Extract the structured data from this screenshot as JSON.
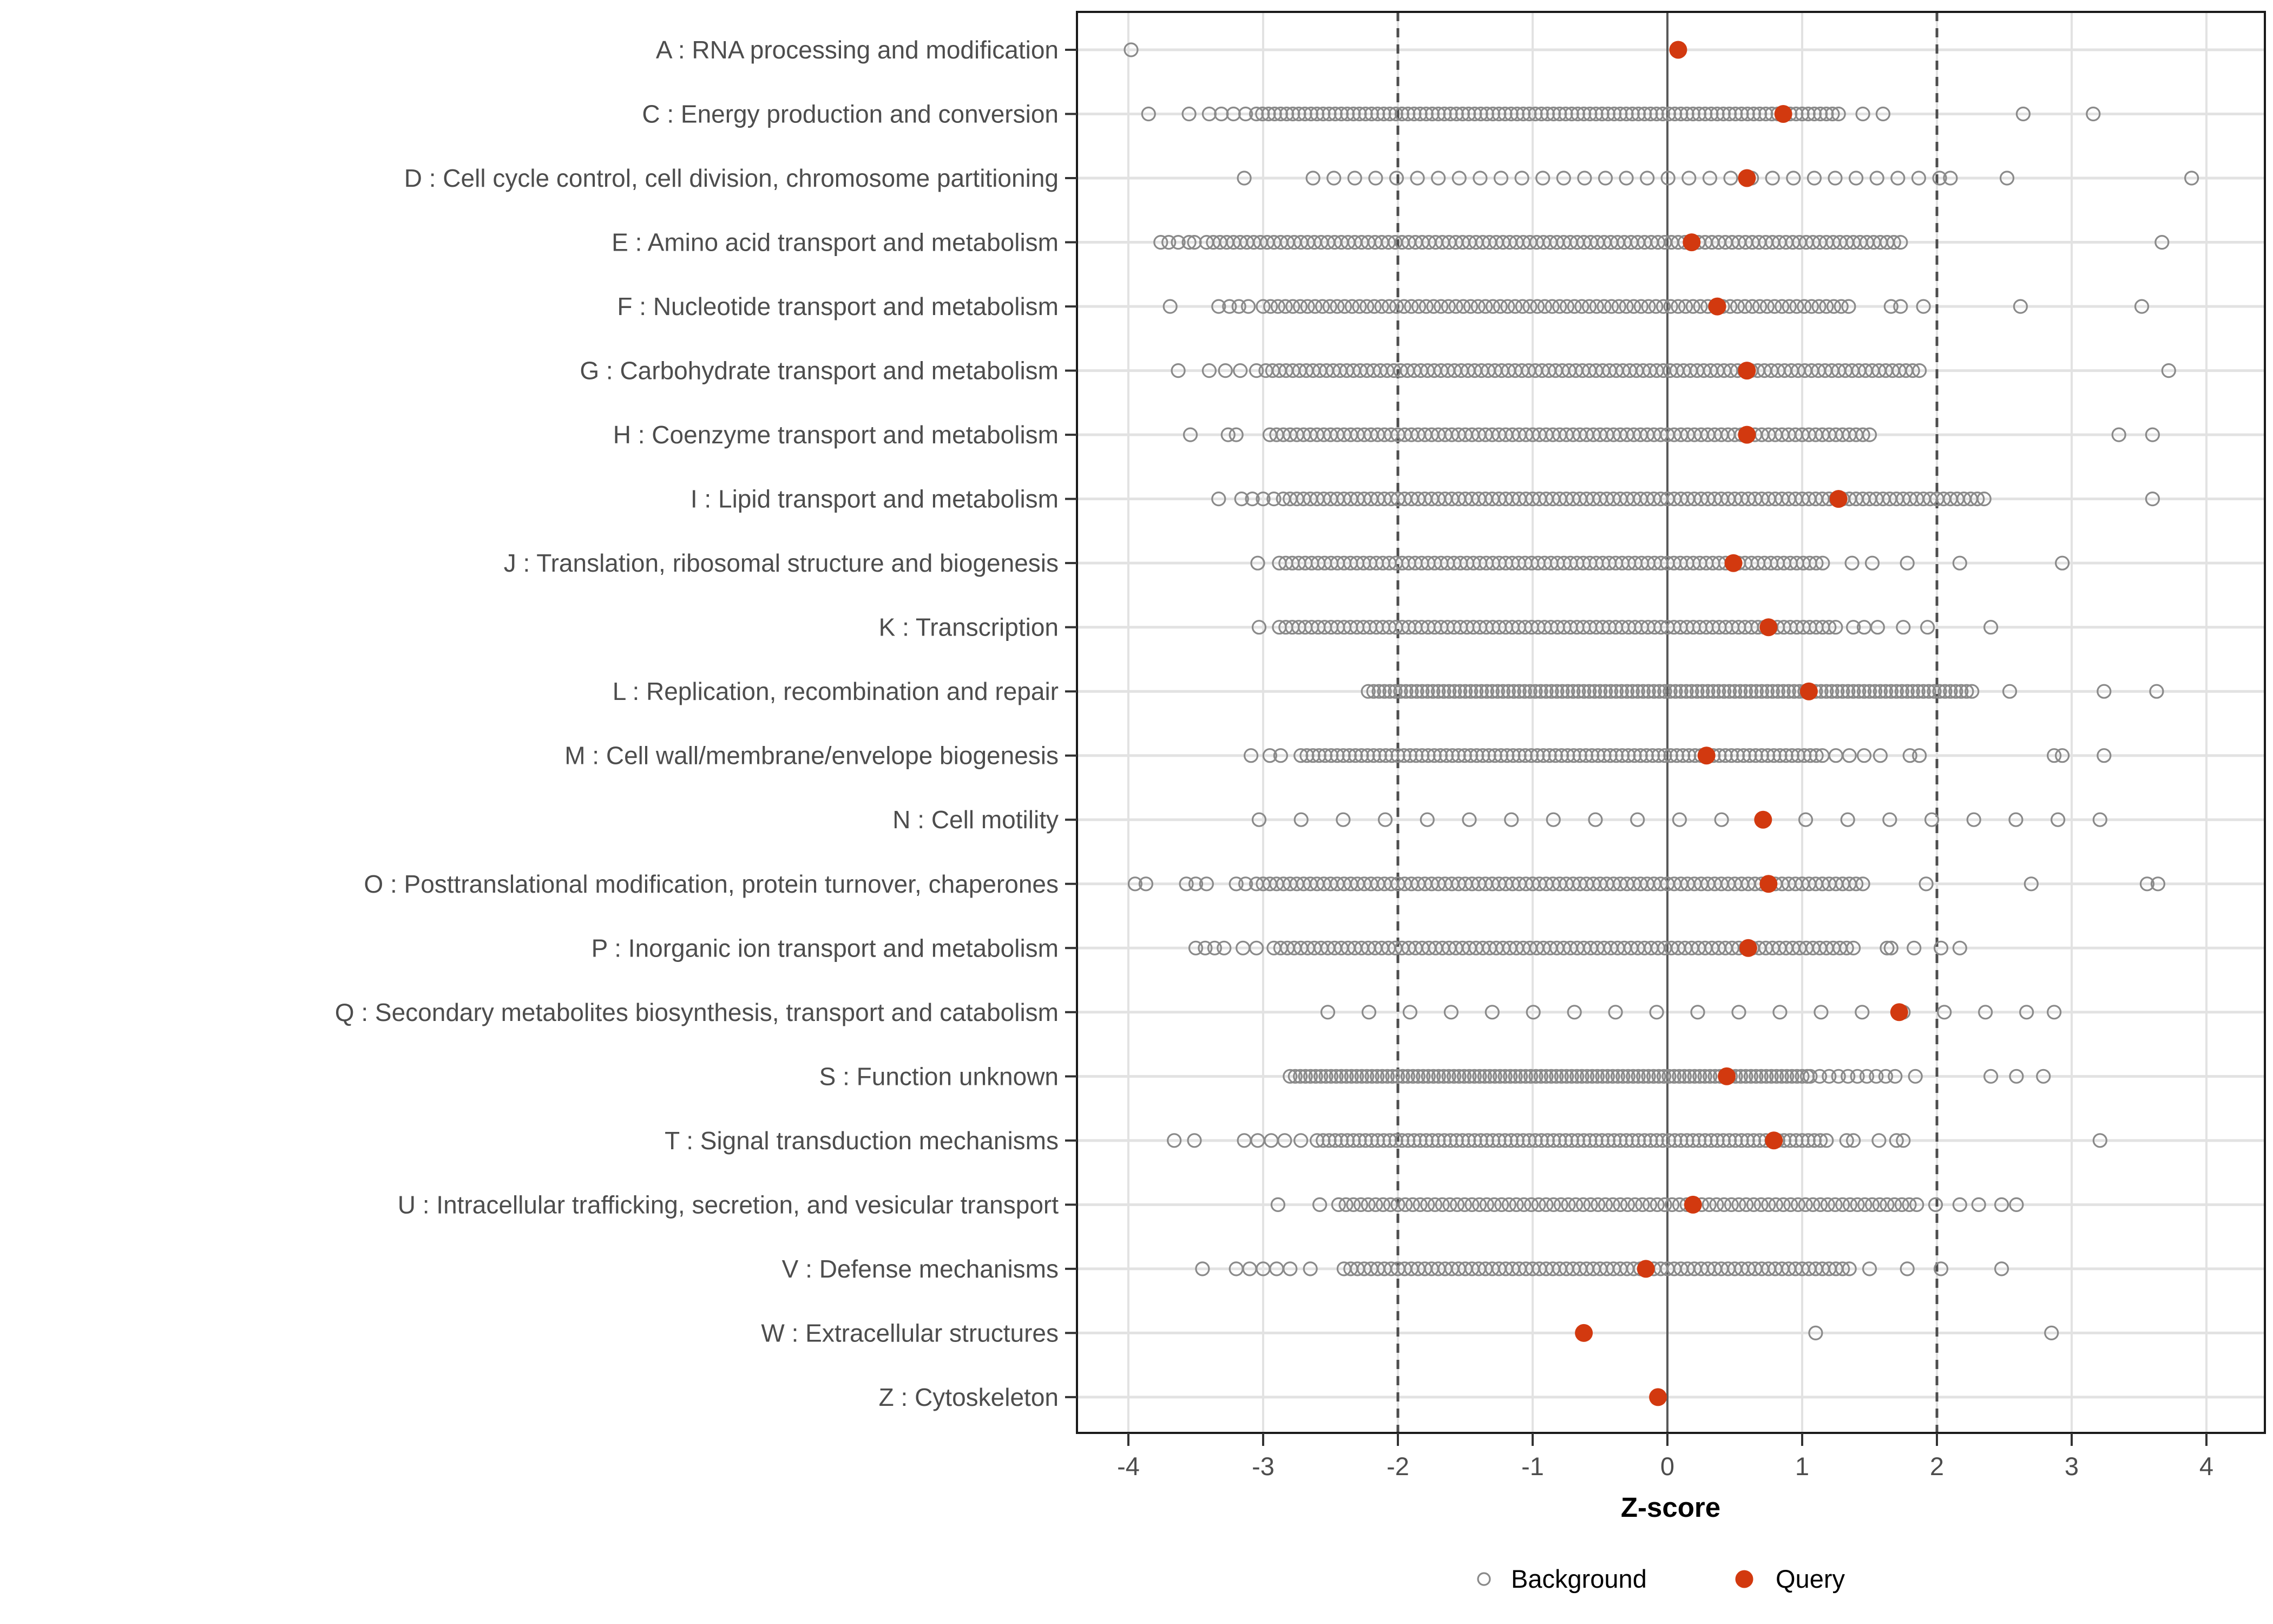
{
  "chart_data": {
    "type": "scatter",
    "title": "",
    "xlabel": "Z-score",
    "x_ticks": [
      -4,
      -3,
      -2,
      -1,
      0,
      1,
      2,
      3,
      4
    ],
    "xlim": [
      -4.38,
      4.43
    ],
    "grid": true,
    "legend_position": "bottom",
    "reference_lines": {
      "solid": 0,
      "dashed": [
        -2,
        2
      ]
    },
    "legend": [
      {
        "label": "Background",
        "marker": "open-circle",
        "color": "#8a8a8a"
      },
      {
        "label": "Query",
        "marker": "filled-circle",
        "color": "#d2390f"
      }
    ],
    "series_note": "Each row: gray open circles = Background gene Z-scores (dense bands encoded as from/to/step ranges, estimated from pixels); red dot = Query Z-score.",
    "categories": [
      {
        "label": "A : RNA processing and modification",
        "query": 0.08,
        "background": {
          "dense": [],
          "points": [
            -3.98
          ]
        }
      },
      {
        "label": "C : Energy production and conversion",
        "query": 0.86,
        "background": {
          "dense": [
            {
              "from": -3.4,
              "to": -3.12,
              "step": 0.09
            },
            {
              "from": -3.05,
              "to": 1.28,
              "step": 0.045
            }
          ],
          "points": [
            -3.85,
            -3.55,
            1.45,
            1.6,
            2.64,
            3.16
          ]
        }
      },
      {
        "label": "D : Cell cycle control, cell division, chromosome partitioning",
        "query": 0.59,
        "background": {
          "dense": [
            {
              "from": -2.63,
              "to": 1.95,
              "step": 0.155
            }
          ],
          "points": [
            -3.14,
            2.1,
            2.52,
            3.89
          ]
        }
      },
      {
        "label": "E : Amino acid transport and metabolism",
        "query": 0.18,
        "background": {
          "dense": [
            {
              "from": -3.42,
              "to": 1.72,
              "step": 0.05
            }
          ],
          "points": [
            -3.76,
            -3.7,
            -3.63,
            -3.55,
            -3.51,
            3.67
          ]
        }
      },
      {
        "label": "F : Nucleotide transport and metabolism",
        "query": 0.37,
        "background": {
          "dense": [
            {
              "from": -3.0,
              "to": 1.35,
              "step": 0.055
            }
          ],
          "points": [
            -3.69,
            -3.33,
            -3.25,
            -3.18,
            -3.11,
            1.66,
            1.73,
            1.9,
            2.62,
            3.52
          ]
        }
      },
      {
        "label": "G : Carbohydrate transport and metabolism",
        "query": 0.59,
        "background": {
          "dense": [
            {
              "from": -2.98,
              "to": 1.86,
              "step": 0.05
            }
          ],
          "points": [
            -3.63,
            -3.4,
            -3.28,
            -3.17,
            -3.05,
            3.72
          ]
        }
      },
      {
        "label": "H : Coenzyme transport and metabolism",
        "query": 0.59,
        "background": {
          "dense": [
            {
              "from": -2.95,
              "to": 1.5,
              "step": 0.05
            }
          ],
          "points": [
            -3.54,
            -3.26,
            -3.2,
            3.35,
            3.6
          ]
        }
      },
      {
        "label": "I : Lipid transport and metabolism",
        "query": 1.27,
        "background": {
          "dense": [
            {
              "from": -2.85,
              "to": 2.35,
              "step": 0.05
            }
          ],
          "points": [
            -3.33,
            -3.16,
            -3.08,
            -3.0,
            -2.92,
            3.6
          ]
        }
      },
      {
        "label": "J : Translation, ribosomal structure and biogenesis",
        "query": 0.49,
        "background": {
          "dense": [
            {
              "from": -2.88,
              "to": 1.15,
              "step": 0.048
            }
          ],
          "points": [
            -3.04,
            1.37,
            1.52,
            1.78,
            2.17,
            2.93
          ]
        }
      },
      {
        "label": "K : Transcription",
        "query": 0.75,
        "background": {
          "dense": [
            {
              "from": -2.88,
              "to": 1.25,
              "step": 0.048
            }
          ],
          "points": [
            -3.03,
            1.38,
            1.46,
            1.56,
            1.75,
            1.93,
            2.4
          ]
        }
      },
      {
        "label": "L : Replication, recombination and repair",
        "query": 1.05,
        "background": {
          "dense": [
            {
              "from": -2.22,
              "to": 2.25,
              "step": 0.04
            }
          ],
          "points": [
            2.54,
            3.24,
            3.63
          ]
        }
      },
      {
        "label": "M : Cell wall/membrane/envelope biogenesis",
        "query": 0.29,
        "background": {
          "dense": [
            {
              "from": -2.72,
              "to": 1.15,
              "step": 0.045
            }
          ],
          "points": [
            -3.09,
            -2.95,
            -2.87,
            1.25,
            1.35,
            1.46,
            1.58,
            1.8,
            1.87,
            2.87,
            2.93,
            3.24
          ]
        }
      },
      {
        "label": "N : Cell motility",
        "query": 0.71,
        "background": {
          "dense": [
            {
              "from": -3.03,
              "to": 3.21,
              "step": 0.312
            }
          ],
          "points": []
        }
      },
      {
        "label": "O : Posttranslational modification, protein turnover, chaperones",
        "query": 0.75,
        "background": {
          "dense": [
            {
              "from": -3.05,
              "to": 1.45,
              "step": 0.05
            }
          ],
          "points": [
            -3.95,
            -3.87,
            -3.57,
            -3.5,
            -3.42,
            -3.2,
            -3.13,
            1.92,
            2.7,
            3.56,
            3.64
          ]
        }
      },
      {
        "label": "P : Inorganic ion transport and metabolism",
        "query": 0.6,
        "background": {
          "dense": [
            {
              "from": -2.92,
              "to": 1.4,
              "step": 0.05
            }
          ],
          "points": [
            -3.5,
            -3.43,
            -3.36,
            -3.29,
            -3.15,
            -3.05,
            1.63,
            1.66,
            1.83,
            2.03,
            2.17
          ]
        }
      },
      {
        "label": "Q : Secondary metabolites biosynthesis, transport and catabolism",
        "query": 1.72,
        "background": {
          "dense": [
            {
              "from": -2.52,
              "to": 2.62,
              "step": 0.305
            }
          ],
          "points": [
            2.87
          ]
        }
      },
      {
        "label": "S : Function unknown",
        "query": 0.44,
        "background": {
          "dense": [
            {
              "from": -2.8,
              "to": 1.02,
              "step": 0.038
            },
            {
              "from": 1.06,
              "to": 1.66,
              "step": 0.07
            }
          ],
          "points": [
            1.84,
            2.4,
            2.59,
            2.79
          ]
        }
      },
      {
        "label": "T : Signal transduction mechanisms",
        "query": 0.79,
        "background": {
          "dense": [
            {
              "from": -2.6,
              "to": 1.19,
              "step": 0.045
            }
          ],
          "points": [
            -3.66,
            -3.51,
            -3.14,
            -3.04,
            -2.94,
            -2.84,
            -2.72,
            1.33,
            1.38,
            1.57,
            1.7,
            1.75,
            3.21
          ]
        }
      },
      {
        "label": "U : Intracellular trafficking, secretion, and vesicular transport",
        "query": 0.19,
        "background": {
          "dense": [
            {
              "from": -2.44,
              "to": 1.84,
              "step": 0.055
            }
          ],
          "points": [
            -2.89,
            -2.58,
            1.99,
            2.17,
            2.31,
            2.48,
            2.59
          ]
        }
      },
      {
        "label": "V : Defense mechanisms",
        "query": -0.16,
        "background": {
          "dense": [
            {
              "from": -2.4,
              "to": 1.36,
              "step": 0.05
            }
          ],
          "points": [
            -3.45,
            -3.2,
            -3.1,
            -3.0,
            -2.9,
            -2.8,
            -2.65,
            1.5,
            1.78,
            2.03,
            2.48
          ]
        }
      },
      {
        "label": "W : Extracellular structures",
        "query": -0.62,
        "background": {
          "dense": [],
          "points": [
            1.1,
            2.85
          ]
        }
      },
      {
        "label": "Z : Cytoskeleton",
        "query": -0.07,
        "background": {
          "dense": [],
          "points": []
        }
      }
    ]
  },
  "colors": {
    "query": "#d2390f",
    "background_stroke": "#8a8a8a",
    "gridline": "#e2e2e2",
    "dashed_line": "#4d4d4d",
    "zero_line": "#595959",
    "panel_border": "#1a1a1a",
    "axis_tick": "#333333",
    "axis_text": "#4d4d4d"
  }
}
